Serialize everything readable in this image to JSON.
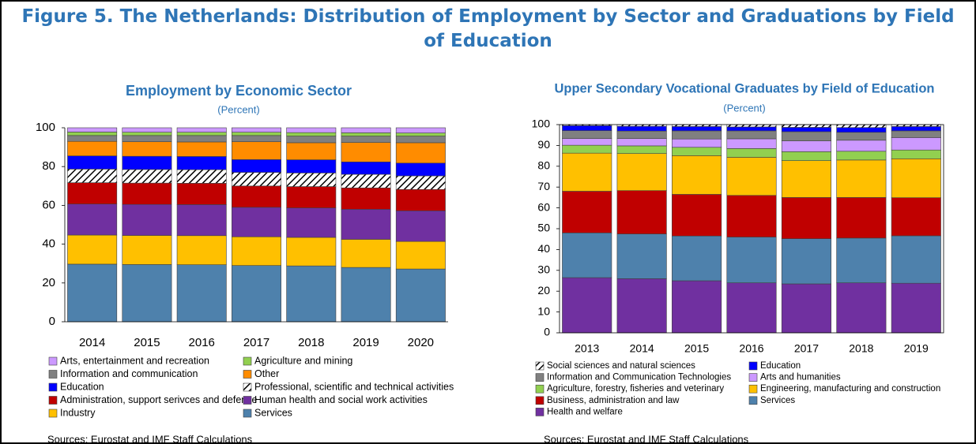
{
  "title": "Figure 5. The Netherlands: Distribution of Employment by Sector and Graduations by Field of Education",
  "chart_data": [
    {
      "type": "bar",
      "stacked": true,
      "title": "Employment by Economic Sector",
      "subtitle": "(Percent)",
      "categories": [
        "2014",
        "2015",
        "2016",
        "2017",
        "2018",
        "2019",
        "2020"
      ],
      "ylim": [
        0,
        100
      ],
      "yticks": [
        0,
        20,
        40,
        60,
        80,
        100
      ],
      "series": [
        {
          "name": "Services",
          "color": "#4e81ac",
          "values": [
            29.7,
            29.5,
            29.4,
            29.0,
            28.8,
            28.0,
            27.2
          ]
        },
        {
          "name": "Industry",
          "color": "#ffc000",
          "values": [
            15.0,
            15.0,
            15.0,
            14.8,
            14.7,
            14.5,
            14.2
          ]
        },
        {
          "name": "Human health and social work activities",
          "color": "#7030a0",
          "values": [
            16.0,
            16.0,
            16.0,
            15.2,
            15.2,
            15.5,
            15.8
          ]
        },
        {
          "name": "Administration, support serivces and defence",
          "color": "#c00000",
          "values": [
            11.0,
            11.0,
            11.0,
            11.0,
            11.0,
            11.0,
            11.0
          ]
        },
        {
          "name": "Professional, scientific and technical activities",
          "color": "#000000",
          "pattern": "hatch",
          "values": [
            7.0,
            7.0,
            7.0,
            7.0,
            7.0,
            7.0,
            7.0
          ]
        },
        {
          "name": "Education",
          "color": "#0000ff",
          "values": [
            6.8,
            6.8,
            6.8,
            6.6,
            6.8,
            6.4,
            6.6
          ]
        },
        {
          "name": "Other",
          "color": "#ff8c00",
          "values": [
            7.5,
            7.5,
            7.5,
            9.2,
            8.8,
            10.0,
            10.5
          ]
        },
        {
          "name": "Information and communication",
          "color": "#808080",
          "values": [
            3.0,
            3.2,
            3.3,
            3.2,
            3.4,
            3.3,
            3.4
          ]
        },
        {
          "name": "Agriculture and mining",
          "color": "#92d050",
          "values": [
            1.8,
            1.7,
            1.7,
            1.7,
            1.8,
            1.7,
            1.6
          ]
        },
        {
          "name": "Arts, entertainment and recreation",
          "color": "#cc99ff",
          "values": [
            2.2,
            2.3,
            2.3,
            2.3,
            2.5,
            2.6,
            2.7
          ]
        }
      ],
      "source": "Sources: Eurostat and IMF Staff Calculations"
    },
    {
      "type": "bar",
      "stacked": true,
      "title": "Upper Secondary Vocational Graduates by Field of Education",
      "subtitle": "(Percent)",
      "categories": [
        "2013",
        "2014",
        "2015",
        "2016",
        "2017",
        "2018",
        "2019"
      ],
      "ylim": [
        0,
        100
      ],
      "yticks": [
        0,
        10,
        20,
        30,
        40,
        50,
        60,
        70,
        80,
        90,
        100
      ],
      "series": [
        {
          "name": "Health and welfare",
          "color": "#7030a0",
          "values": [
            26.5,
            26.0,
            25.0,
            24.0,
            23.5,
            24.0,
            23.8
          ]
        },
        {
          "name": "Services",
          "color": "#4e81ac",
          "values": [
            21.5,
            21.5,
            21.5,
            22.0,
            21.7,
            21.5,
            22.8
          ]
        },
        {
          "name": "Business, administration and law",
          "color": "#c00000",
          "values": [
            20.0,
            20.8,
            20.0,
            20.0,
            19.8,
            19.5,
            18.3
          ]
        },
        {
          "name": "Engineering, manufacturing and construction",
          "color": "#ffc000",
          "values": [
            18.3,
            17.8,
            18.6,
            18.3,
            17.7,
            18.0,
            18.7
          ]
        },
        {
          "name": "Agriculture, forestry, fisheries and veterinary",
          "color": "#92d050",
          "values": [
            3.8,
            3.7,
            4.0,
            4.2,
            4.3,
            4.2,
            4.2
          ]
        },
        {
          "name": "Arts and humanities",
          "color": "#cc99ff",
          "values": [
            3.2,
            3.5,
            4.0,
            4.7,
            5.2,
            5.3,
            6.0
          ]
        },
        {
          "name": "Information and Communication Technologies",
          "color": "#808080",
          "values": [
            3.8,
            3.6,
            3.9,
            3.8,
            4.4,
            3.8,
            3.2
          ]
        },
        {
          "name": "Education",
          "color": "#0000ff",
          "values": [
            2.4,
            2.3,
            2.1,
            1.9,
            2.1,
            2.3,
            2.1
          ]
        },
        {
          "name": "Social sciences and natural sciences",
          "color": "#000000",
          "pattern": "hatch",
          "values": [
            0.5,
            0.8,
            0.9,
            1.1,
            1.3,
            1.4,
            0.9
          ]
        }
      ],
      "source": "Sources: Eurostat and IMF Staff Calculations"
    }
  ]
}
